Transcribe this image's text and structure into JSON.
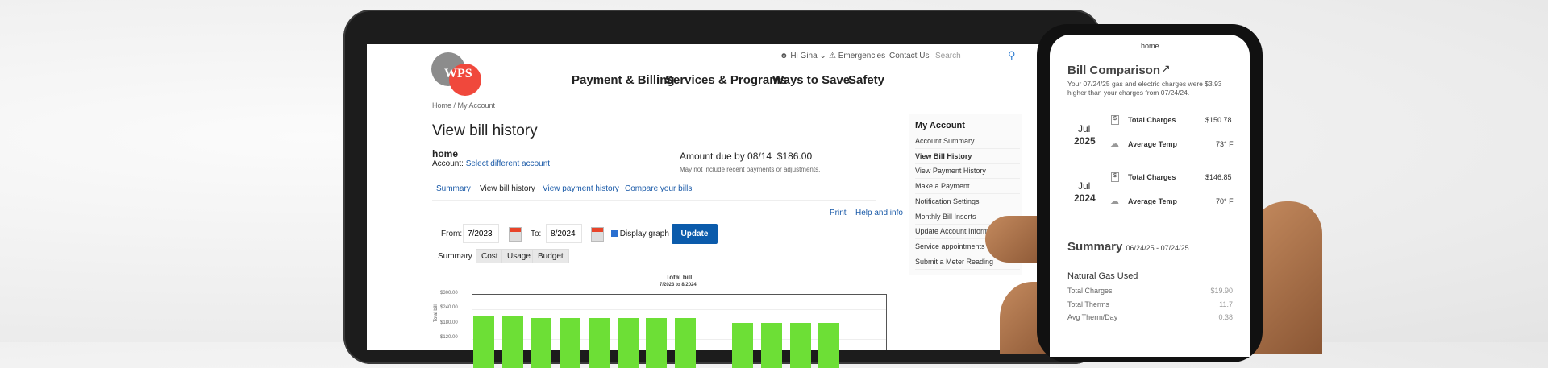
{
  "tablet": {
    "logo_text": "WPS",
    "utility": {
      "greeting": "Hi Gina",
      "emergencies": "Emergencies",
      "contact": "Contact Us",
      "search_placeholder": "Search"
    },
    "nav": [
      "Payment & Billing",
      "Services & Programs",
      "Ways to Save",
      "Safety"
    ],
    "breadcrumb": "Home / My Account",
    "title": "View bill history",
    "account_name": "home",
    "account_label": "Account:",
    "account_link": "Select different account",
    "amount_due_label": "Amount due by 08/14",
    "amount_due_value": "$186.00",
    "amount_note": "May not include recent payments or adjustments.",
    "tabs": [
      "Summary",
      "View bill history",
      "View payment history",
      "Compare your bills"
    ],
    "print": "Print",
    "help": "Help and info",
    "from_label": "From:",
    "from_value": "7/2023",
    "to_label": "To:",
    "to_value": "8/2024",
    "display_graph": "Display graph",
    "display_graph_checked": true,
    "update": "Update",
    "graph_tabs": [
      "Summary",
      "Cost",
      "Usage",
      "Budget"
    ],
    "sidebar": {
      "heading": "My Account",
      "items": [
        "Account Summary",
        "View Bill History",
        "View Payment History",
        "Make a Payment",
        "Notification Settings",
        "Monthly Bill Inserts",
        "Update Account Information",
        "Service appointments",
        "Submit a Meter Reading"
      ]
    },
    "colors": {
      "accent": "#0b5bab",
      "bar": "#6ddf36",
      "logo_gray": "#8c8c8c",
      "logo_red": "#f0483c"
    }
  },
  "chart_data": {
    "type": "bar",
    "title": "Total bill",
    "subtitle": "7/2023 to 8/2024",
    "ylabel": "Total bill",
    "yticks": [
      "$300.00",
      "$240.00",
      "$180.00",
      "$120.00"
    ],
    "ylim": [
      0,
      300
    ],
    "values": [
      212,
      212,
      205,
      205,
      205,
      205,
      205,
      205,
      null,
      185,
      185,
      185,
      185
    ]
  },
  "phone": {
    "header": "home",
    "comparison_title": "Bill Comparison",
    "comparison_text_1": "Your 07/24/25 gas and electric charges were $3.93",
    "comparison_text_2": "higher than your charges from 07/24/24.",
    "periods": [
      {
        "month": "Jul",
        "year": "2025",
        "charges_label": "Total Charges",
        "charges": "$150.78",
        "temp_label": "Average Temp",
        "temp": "73° F"
      },
      {
        "month": "Jul",
        "year": "2024",
        "charges_label": "Total Charges",
        "charges": "$146.85",
        "temp_label": "Average Temp",
        "temp": "70° F"
      }
    ],
    "summary_title": "Summary",
    "summary_range": "06/24/25 - 07/24/25",
    "gas_heading": "Natural Gas Used",
    "gas_rows": [
      {
        "label": "Total Charges",
        "value": "$19.90"
      },
      {
        "label": "Total Therms",
        "value": "11.7"
      },
      {
        "label": "Avg Therm/Day",
        "value": "0.38"
      }
    ]
  }
}
